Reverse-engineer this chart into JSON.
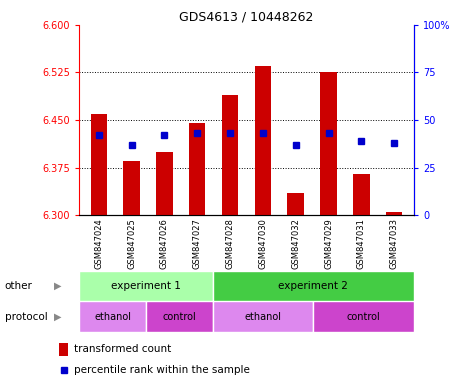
{
  "title": "GDS4613 / 10448262",
  "samples": [
    "GSM847024",
    "GSM847025",
    "GSM847026",
    "GSM847027",
    "GSM847028",
    "GSM847030",
    "GSM847032",
    "GSM847029",
    "GSM847031",
    "GSM847033"
  ],
  "bar_bottoms": [
    6.3,
    6.3,
    6.3,
    6.3,
    6.3,
    6.3,
    6.3,
    6.3,
    6.3,
    6.3
  ],
  "bar_tops": [
    6.46,
    6.385,
    6.4,
    6.445,
    6.49,
    6.535,
    6.335,
    6.525,
    6.365,
    6.305
  ],
  "percentile_ranks": [
    42,
    37,
    42,
    43,
    43,
    43,
    37,
    43,
    39,
    38
  ],
  "ylim": [
    6.3,
    6.6
  ],
  "ylim_right": [
    0,
    100
  ],
  "yticks_left": [
    6.3,
    6.375,
    6.45,
    6.525,
    6.6
  ],
  "yticks_right": [
    0,
    25,
    50,
    75,
    100
  ],
  "bar_color": "#cc0000",
  "dot_color": "#0000cc",
  "background_color": "#ffffff",
  "experiment1_color": "#aaffaa",
  "experiment2_color": "#44cc44",
  "ethanol_color": "#dd88ee",
  "control_color": "#cc44cc",
  "tick_label_area_color": "#cccccc",
  "legend_bar_label": "transformed count",
  "legend_dot_label": "percentile rank within the sample"
}
